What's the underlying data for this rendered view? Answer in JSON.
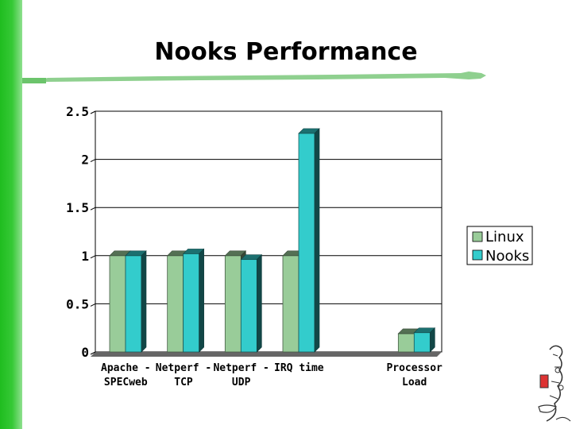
{
  "slide": {
    "title": "Nooks Performance"
  },
  "colors": {
    "accent_green": "#2cc22c",
    "linux_series": "#99cc99",
    "nooks_series": "#33cccc"
  },
  "chart_data": {
    "type": "bar",
    "title": "",
    "xlabel": "",
    "ylabel": "",
    "ylim": [
      0,
      2.5
    ],
    "yticks": [
      "0",
      "0.5",
      "1",
      "1.5",
      "2",
      "2.5"
    ],
    "grid": true,
    "legend_position": "right",
    "categories": [
      [
        "Apache -",
        "SPECweb"
      ],
      [
        "Netperf -",
        "TCP"
      ],
      [
        "Netperf -",
        "UDP"
      ],
      [
        "IRQ time",
        ""
      ],
      [
        "",
        ""
      ],
      [
        "Processor",
        "Load"
      ]
    ],
    "series": [
      {
        "name": "Linux",
        "values": [
          1,
          1,
          1,
          1,
          null,
          0.19
        ]
      },
      {
        "name": "Nooks",
        "values": [
          1,
          1.02,
          0.96,
          2.27,
          null,
          0.2
        ]
      }
    ]
  }
}
